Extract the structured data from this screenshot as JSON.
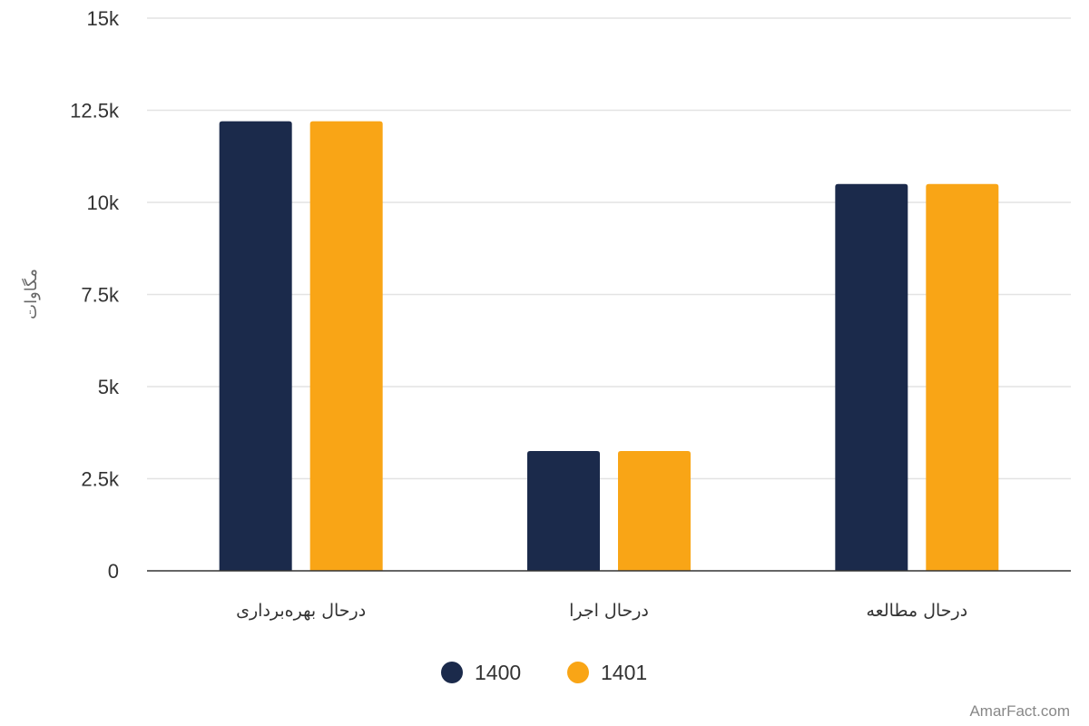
{
  "chart_data": {
    "type": "bar",
    "categories": [
      "درحال بهره‌برداری",
      "درحال اجرا",
      "درحال مطالعه"
    ],
    "series": [
      {
        "name": "1400",
        "values": [
          12200,
          3250,
          10500
        ],
        "color": "#1b2a4b"
      },
      {
        "name": "1401",
        "values": [
          12200,
          3250,
          10500
        ],
        "color": "#f9a516"
      }
    ],
    "title": "",
    "xlabel": "",
    "ylabel": "مگاوات",
    "ylim": [
      0,
      15000
    ],
    "yticks": [
      0,
      2500,
      5000,
      7500,
      10000,
      12500,
      15000
    ],
    "ytick_labels": [
      "0",
      "2.5k",
      "5k",
      "7.5k",
      "10k",
      "12.5k",
      "15k"
    ],
    "grid": true,
    "legend_position": "bottom-center"
  },
  "watermark": "AmarFact.com"
}
